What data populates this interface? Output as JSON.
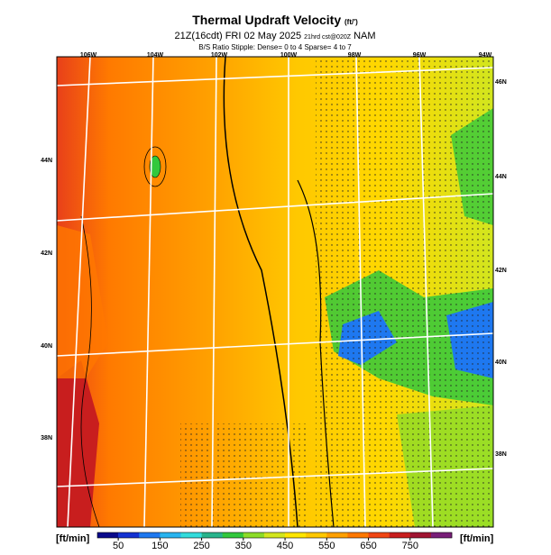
{
  "header": {
    "title": "Thermal Updraft Velocity",
    "title_unit": "(ft/')",
    "valid": "21Z(16cdt) FRI 02 May 2025",
    "run": "21hrd cst@020Z",
    "model": "NAM",
    "note": "B/S Ratio Stipple: Dense= 0 to 4 Sparse= 4 to 7"
  },
  "map": {
    "lon_labels": [
      "106W",
      "104W",
      "102W",
      "100W",
      "98W",
      "96W",
      "94W"
    ],
    "lat_labels_left": [
      "44N",
      "42N",
      "40N",
      "38N"
    ],
    "lat_labels_right": [
      "46N",
      "44N",
      "42N",
      "40N",
      "38N"
    ]
  },
  "colorbar": {
    "unit": "[ft/min]",
    "range": [
      0,
      850
    ],
    "ticks": [
      50,
      150,
      250,
      350,
      450,
      550,
      650,
      750
    ],
    "colors": [
      "#0a0a8c",
      "#1432d2",
      "#1e78f0",
      "#28b4f0",
      "#32dcdc",
      "#28b48c",
      "#32c83c",
      "#8cdc28",
      "#d2e61e",
      "#ffe600",
      "#ffc800",
      "#ffa000",
      "#ff7800",
      "#f04614",
      "#c81e1e",
      "#a01432",
      "#781e78"
    ]
  }
}
